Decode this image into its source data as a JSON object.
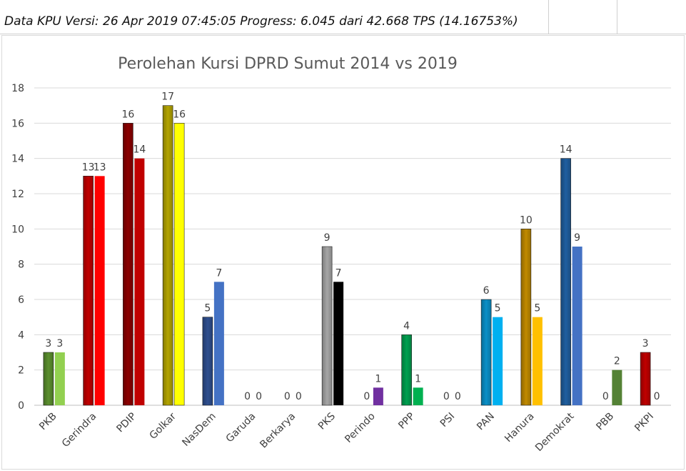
{
  "header": {
    "text": "Data KPU Versi: 26 Apr 2019 07:45:05 Progress: 6.045 dari 42.668 TPS (14.16753%)"
  },
  "chart_data": {
    "type": "bar",
    "title": "Perolehan Kursi DPRD Sumut 2014 vs 2019",
    "xlabel": "",
    "ylabel": "",
    "ylim": [
      0,
      18
    ],
    "yticks": [
      0,
      2,
      4,
      6,
      8,
      10,
      12,
      14,
      16,
      18
    ],
    "grid": true,
    "legend": "none",
    "categories": [
      "PKB",
      "Gerindra",
      "PDIP",
      "Golkar",
      "NasDem",
      "Garuda",
      "Berkarya",
      "PKS",
      "Perindo",
      "PPP",
      "PSI",
      "PAN",
      "Hanura",
      "Demokrat",
      "PBB",
      "PKPI"
    ],
    "series": [
      {
        "values": [
          3,
          13,
          16,
          17,
          5,
          0,
          0,
          9,
          0,
          4,
          0,
          6,
          10,
          14,
          0,
          3
        ]
      },
      {
        "values": [
          3,
          13,
          14,
          16,
          7,
          0,
          0,
          7,
          1,
          1,
          0,
          5,
          5,
          9,
          2,
          0
        ]
      }
    ],
    "colors_2014": [
      "#5b8f2e",
      "#c00000",
      "#8b0000",
      "#b3a400",
      "#2e4f8f",
      "#808080",
      "#808080",
      "#a6a6a6",
      "#7030a0",
      "#00a050",
      "#808080",
      "#0a90c8",
      "#c08a00",
      "#1f5fa0",
      "#4e7a2e",
      "#c00000"
    ],
    "colors_2019": [
      "#92d050",
      "#ff0000",
      "#c00000",
      "#ffff00",
      "#4472c4",
      "#808080",
      "#808080",
      "#000000",
      "#7030a0",
      "#00b050",
      "#808080",
      "#00b0f0",
      "#ffc000",
      "#4472c4",
      "#548235",
      "#ff0000"
    ]
  }
}
